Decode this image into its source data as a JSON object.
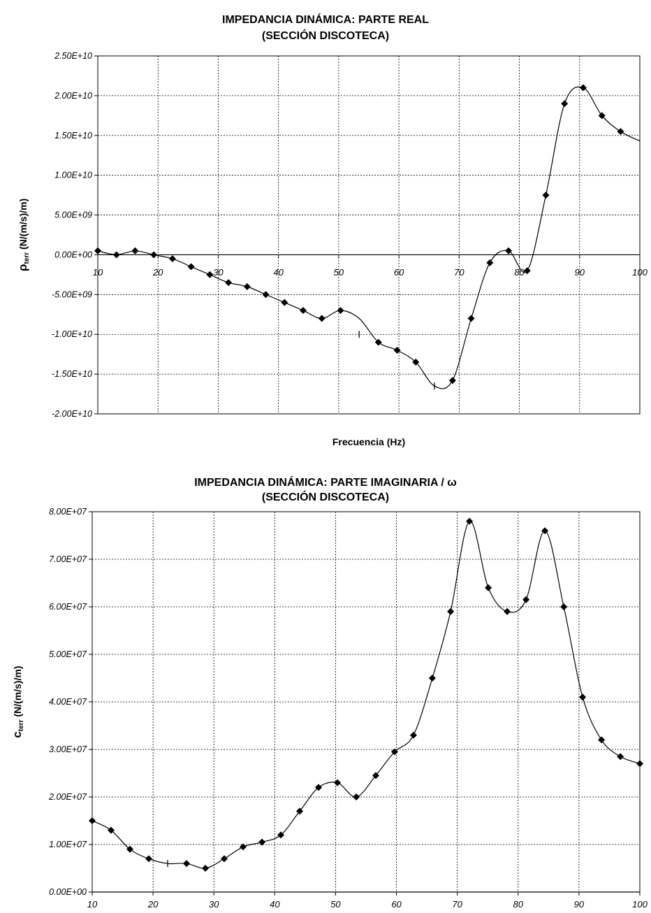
{
  "chart_data": [
    {
      "type": "line",
      "title": "IMPEDANCIA DINÁMICA: PARTE REAL",
      "subtitle": "(SECCIÓN DISCOTECA)",
      "xlabel": "Frecuencia (Hz)",
      "ylabel_symbol": "ρ",
      "ylabel_sub": "terr",
      "ylabel_rest": " (N/(m/s)/m)",
      "xlim": [
        10,
        100
      ],
      "ylim": [
        -20000000000.0,
        25000000000.0
      ],
      "xticks": [
        10,
        20,
        30,
        40,
        50,
        60,
        70,
        80,
        90,
        100
      ],
      "xtick_labels": [
        "10",
        "20",
        "30",
        "40",
        "50",
        "60",
        "70",
        "80",
        "90",
        "100"
      ],
      "yticks": [
        25000000000.0,
        20000000000.0,
        15000000000.0,
        10000000000.0,
        5000000000.0,
        0,
        -5000000000.0,
        -10000000000.0,
        -15000000000.0,
        -20000000000.0
      ],
      "ytick_labels": [
        "2.50E+10",
        "2.00E+10",
        "1.50E+10",
        "1.00E+10",
        "5.00E+09",
        "0.00E+00",
        "-5.00E+09",
        "-1.00E+10",
        "-1.50E+10",
        "-2.00E+10"
      ],
      "x_axis_at_zero": true,
      "grid": true,
      "series": [
        {
          "marker": "diamond",
          "x": [
            10,
            13.1,
            16.2,
            19.3,
            22.4,
            25.5,
            28.6,
            31.7,
            34.8,
            37.9,
            41.0,
            44.1,
            47.2,
            50.3,
            56.6,
            59.7,
            62.8,
            68.9,
            72.0,
            75.1,
            78.2,
            81.3,
            84.4,
            87.5,
            90.6,
            93.7,
            96.8
          ],
          "y": [
            500000000.0,
            0,
            500000000.0,
            0,
            -500000000.0,
            -1500000000.0,
            -2500000000.0,
            -3500000000.0,
            -4000000000.0,
            -5000000000.0,
            -6000000000.0,
            -7000000000.0,
            -8000000000.0,
            -7000000000.0,
            -11000000000.0,
            -12000000000.0,
            -13500000000.0,
            -15800000000.0,
            -8000000000.0,
            -1000000000.0,
            500000000.0,
            -2000000000.0,
            7500000000.0,
            19000000000.0,
            21000000000.0,
            17500000000.0,
            15500000000.0
          ]
        },
        {
          "marker": "dash",
          "x": [
            53.4,
            65.9
          ],
          "y": [
            -10000000000.0,
            -16500000000.0
          ]
        }
      ],
      "curve_x": [
        10,
        13.1,
        16.2,
        19.3,
        22.4,
        25.5,
        28.6,
        31.7,
        34.8,
        37.9,
        41.0,
        44.1,
        47.2,
        50.3,
        53.4,
        56.6,
        59.7,
        62.8,
        65.9,
        68.9,
        72.0,
        75.1,
        78.2,
        81.3,
        84.4,
        87.5,
        90.6,
        93.7,
        96.8,
        100
      ],
      "curve_y": [
        500000000.0,
        0,
        500000000.0,
        0,
        -500000000.0,
        -1500000000.0,
        -2500000000.0,
        -3500000000.0,
        -4000000000.0,
        -5000000000.0,
        -6000000000.0,
        -7000000000.0,
        -8000000000.0,
        -7000000000.0,
        -8000000000.0,
        -11000000000.0,
        -12000000000.0,
        -13500000000.0,
        -16500000000.0,
        -15800000000.0,
        -8000000000.0,
        -1000000000.0,
        500000000.0,
        -2000000000.0,
        7500000000.0,
        19000000000.0,
        21000000000.0,
        17500000000.0,
        15500000000.0,
        14300000000.0
      ]
    },
    {
      "type": "line",
      "title": "IMPEDANCIA DINÁMICA: PARTE IMAGINARIA / ω",
      "subtitle": "(SECCIÓN DISCOTECA)",
      "xlabel": "Frecuencia (Hz)",
      "ylabel_symbol": "c",
      "ylabel_sub": "terr",
      "ylabel_rest": " (N/(m/s)/m)",
      "xlim": [
        10,
        100
      ],
      "ylim": [
        0,
        80000000.0
      ],
      "xticks": [
        10,
        20,
        30,
        40,
        50,
        60,
        70,
        80,
        90,
        100
      ],
      "xtick_labels": [
        "10",
        "20",
        "30",
        "40",
        "50",
        "60",
        "70",
        "80",
        "90",
        "100"
      ],
      "yticks": [
        80000000.0,
        70000000.0,
        60000000.0,
        50000000.0,
        40000000.0,
        30000000.0,
        20000000.0,
        10000000.0,
        0
      ],
      "ytick_labels": [
        "8.00E+07",
        "7.00E+07",
        "6.00E+07",
        "5.00E+07",
        "4.00E+07",
        "3.00E+07",
        "2.00E+07",
        "1.00E+07",
        "0.00E+00"
      ],
      "x_axis_at_zero": false,
      "grid": true,
      "series": [
        {
          "marker": "diamond",
          "x": [
            10,
            13.1,
            16.2,
            19.3,
            25.5,
            28.6,
            31.7,
            34.8,
            37.9,
            41.0,
            44.1,
            47.2,
            50.3,
            53.4,
            56.6,
            59.7,
            62.8,
            65.9,
            68.9,
            72.0,
            75.1,
            78.2,
            81.3,
            84.4,
            87.5,
            90.6,
            93.7,
            96.8,
            100
          ],
          "y": [
            15000000.0,
            13000000.0,
            9000000.0,
            7000000.0,
            6000000.0,
            5000000.0,
            7000000.0,
            9500000.0,
            10500000.0,
            12000000.0,
            17000000.0,
            22000000.0,
            23000000.0,
            20000000.0,
            24500000.0,
            29500000.0,
            33000000.0,
            45000000.0,
            59000000.0,
            78000000.0,
            64000000.0,
            59000000.0,
            61500000.0,
            76000000.0,
            60000000.0,
            41000000.0,
            32000000.0,
            28500000.0,
            27000000.0
          ]
        },
        {
          "marker": "dash",
          "x": [
            22.4
          ],
          "y": [
            6000000.0
          ]
        }
      ],
      "curve_x": [
        10,
        13.1,
        16.2,
        19.3,
        22.4,
        25.5,
        28.6,
        31.7,
        34.8,
        37.9,
        41.0,
        44.1,
        47.2,
        50.3,
        53.4,
        56.6,
        59.7,
        62.8,
        65.9,
        68.9,
        72.0,
        75.1,
        78.2,
        81.3,
        84.4,
        87.5,
        90.6,
        93.7,
        96.8,
        100
      ],
      "curve_y": [
        15000000.0,
        13000000.0,
        9000000.0,
        7000000.0,
        6000000.0,
        6000000.0,
        5000000.0,
        7000000.0,
        9500000.0,
        10500000.0,
        12000000.0,
        17000000.0,
        22000000.0,
        23000000.0,
        20000000.0,
        24500000.0,
        29500000.0,
        33000000.0,
        45000000.0,
        59000000.0,
        78000000.0,
        64000000.0,
        59000000.0,
        61500000.0,
        76000000.0,
        60000000.0,
        41000000.0,
        32000000.0,
        28500000.0,
        27000000.0
      ]
    }
  ]
}
